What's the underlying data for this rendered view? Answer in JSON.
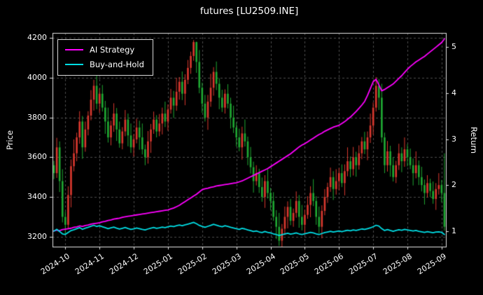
{
  "theme": {
    "background": "#000000",
    "frame": "#e6e6e6",
    "grid": "#4d4d4d",
    "text": "#ffffff"
  },
  "chart_data": {
    "type": "candlestick",
    "title": "futures [LU2509.INE]",
    "ylabel_left": "Price",
    "ylabel_right": "Return",
    "legend_position": "upper left",
    "grid": "dashed",
    "up_color": "#d9382e",
    "down_color": "#1fa832",
    "price_ticks": [
      3200,
      3400,
      3600,
      3800,
      4000,
      4200
    ],
    "price_range": [
      3150,
      4226
    ],
    "return_ticks": [
      1,
      2,
      3,
      4,
      5
    ],
    "return_range": [
      0.66,
      5.31
    ],
    "x_tick_labels": [
      "2024-10",
      "2024-11",
      "2024-12",
      "2025-01",
      "2025-02",
      "2025-03",
      "2025-04",
      "2025-05",
      "2025-06",
      "2025-07",
      "2025-08",
      "2025-09"
    ],
    "x_tick_indices": [
      4,
      16,
      28,
      40,
      52,
      64,
      76,
      88,
      100,
      112,
      124,
      136
    ],
    "candles": [
      [
        3560,
        3582,
        3490,
        3520
      ],
      [
        3520,
        3698,
        3496,
        3650
      ],
      [
        3650,
        3680,
        3425,
        3480
      ],
      [
        3480,
        3540,
        3272,
        3300
      ],
      [
        3300,
        3326,
        3214,
        3260
      ],
      [
        3260,
        3454,
        3240,
        3410
      ],
      [
        3410,
        3589,
        3348,
        3555
      ],
      [
        3555,
        3690,
        3529,
        3620
      ],
      [
        3620,
        3724,
        3580,
        3700
      ],
      [
        3700,
        3832,
        3668,
        3780
      ],
      [
        3780,
        3808,
        3592,
        3650
      ],
      [
        3650,
        3780,
        3628,
        3740
      ],
      [
        3740,
        3832,
        3710,
        3810
      ],
      [
        3810,
        3938,
        3786,
        3890
      ],
      [
        3890,
        3990,
        3835,
        3960
      ],
      [
        3960,
        4020,
        3842,
        3870
      ],
      [
        3870,
        3946,
        3824,
        3920
      ],
      [
        3920,
        3964,
        3830,
        3850
      ],
      [
        3850,
        3884,
        3718,
        3780
      ],
      [
        3780,
        3850,
        3674,
        3700
      ],
      [
        3700,
        3784,
        3660,
        3760
      ],
      [
        3760,
        3872,
        3728,
        3820
      ],
      [
        3820,
        3848,
        3682,
        3740
      ],
      [
        3740,
        3780,
        3648,
        3670
      ],
      [
        3670,
        3752,
        3640,
        3730
      ],
      [
        3730,
        3838,
        3706,
        3790
      ],
      [
        3790,
        3820,
        3655,
        3710
      ],
      [
        3710,
        3770,
        3622,
        3650
      ],
      [
        3650,
        3716,
        3604,
        3690
      ],
      [
        3690,
        3794,
        3670,
        3750
      ],
      [
        3750,
        3784,
        3638,
        3700
      ],
      [
        3700,
        3770,
        3614,
        3640
      ],
      [
        3640,
        3664,
        3560,
        3600
      ],
      [
        3600,
        3732,
        3568,
        3680
      ],
      [
        3680,
        3768,
        3622,
        3740
      ],
      [
        3740,
        3830,
        3718,
        3790
      ],
      [
        3790,
        3812,
        3700,
        3730
      ],
      [
        3730,
        3818,
        3706,
        3770
      ],
      [
        3770,
        3850,
        3715,
        3820
      ],
      [
        3820,
        3880,
        3752,
        3780
      ],
      [
        3780,
        3866,
        3734,
        3840
      ],
      [
        3840,
        3944,
        3820,
        3900
      ],
      [
        3900,
        3934,
        3798,
        3860
      ],
      [
        3860,
        4000,
        3834,
        3930
      ],
      [
        3930,
        4004,
        3890,
        3980
      ],
      [
        3980,
        4032,
        3888,
        3920
      ],
      [
        3920,
        4018,
        3862,
        3990
      ],
      [
        3990,
        4090,
        3968,
        4050
      ],
      [
        4050,
        4132,
        4020,
        4110
      ],
      [
        4110,
        4190,
        4086,
        4180
      ],
      [
        4180,
        4182,
        4025,
        4080
      ],
      [
        4080,
        4140,
        3922,
        3950
      ],
      [
        3950,
        3976,
        3824,
        3870
      ],
      [
        3870,
        3914,
        3780,
        3800
      ],
      [
        3800,
        3914,
        3738,
        3880
      ],
      [
        3880,
        4020,
        3854,
        3950
      ],
      [
        3950,
        4054,
        3910,
        4030
      ],
      [
        4030,
        4082,
        3938,
        3970
      ],
      [
        3970,
        3998,
        3842,
        3900
      ],
      [
        3900,
        3940,
        3828,
        3850
      ],
      [
        3850,
        3942,
        3820,
        3920
      ],
      [
        3920,
        3968,
        3846,
        3870
      ],
      [
        3870,
        3900,
        3745,
        3800
      ],
      [
        3800,
        3860,
        3722,
        3750
      ],
      [
        3750,
        3776,
        3654,
        3700
      ],
      [
        3700,
        3744,
        3630,
        3650
      ],
      [
        3650,
        3754,
        3588,
        3720
      ],
      [
        3720,
        3790,
        3654,
        3680
      ],
      [
        3680,
        3704,
        3560,
        3600
      ],
      [
        3600,
        3652,
        3518,
        3550
      ],
      [
        3550,
        3578,
        3422,
        3480
      ],
      [
        3480,
        3560,
        3458,
        3520
      ],
      [
        3520,
        3542,
        3420,
        3450
      ],
      [
        3450,
        3498,
        3376,
        3400
      ],
      [
        3400,
        3510,
        3345,
        3480
      ],
      [
        3480,
        3540,
        3392,
        3420
      ],
      [
        3420,
        3446,
        3334,
        3380
      ],
      [
        3380,
        3424,
        3280,
        3300
      ],
      [
        3300,
        3334,
        3188,
        3250
      ],
      [
        3250,
        3320,
        3154,
        3180
      ],
      [
        3180,
        3264,
        3140,
        3240
      ],
      [
        3240,
        3352,
        3208,
        3300
      ],
      [
        3300,
        3378,
        3242,
        3350
      ],
      [
        3350,
        3390,
        3258,
        3280
      ],
      [
        3280,
        3342,
        3250,
        3320
      ],
      [
        3320,
        3428,
        3296,
        3380
      ],
      [
        3380,
        3410,
        3245,
        3300
      ],
      [
        3300,
        3360,
        3232,
        3260
      ],
      [
        3260,
        3336,
        3214,
        3310
      ],
      [
        3310,
        3404,
        3290,
        3360
      ],
      [
        3360,
        3454,
        3298,
        3420
      ],
      [
        3420,
        3490,
        3354,
        3380
      ],
      [
        3380,
        3404,
        3260,
        3300
      ],
      [
        3300,
        3352,
        3218,
        3250
      ],
      [
        3250,
        3358,
        3192,
        3330
      ],
      [
        3330,
        3440,
        3308,
        3400
      ],
      [
        3400,
        3472,
        3370,
        3450
      ],
      [
        3450,
        3548,
        3426,
        3500
      ],
      [
        3500,
        3530,
        3385,
        3440
      ],
      [
        3440,
        3540,
        3412,
        3480
      ],
      [
        3480,
        3546,
        3434,
        3520
      ],
      [
        3520,
        3564,
        3450,
        3470
      ],
      [
        3470,
        3564,
        3408,
        3530
      ],
      [
        3530,
        3650,
        3504,
        3580
      ],
      [
        3580,
        3604,
        3500,
        3540
      ],
      [
        3540,
        3652,
        3508,
        3600
      ],
      [
        3600,
        3628,
        3502,
        3560
      ],
      [
        3560,
        3660,
        3538,
        3620
      ],
      [
        3620,
        3702,
        3590,
        3680
      ],
      [
        3680,
        3728,
        3616,
        3640
      ],
      [
        3640,
        3730,
        3585,
        3700
      ],
      [
        3700,
        3820,
        3672,
        3760
      ],
      [
        3760,
        3876,
        3714,
        3850
      ],
      [
        3850,
        4004,
        3830,
        3960
      ],
      [
        3960,
        3994,
        3838,
        3900
      ],
      [
        3900,
        3970,
        3674,
        3700
      ],
      [
        3700,
        3724,
        3520,
        3560
      ],
      [
        3560,
        3682,
        3528,
        3630
      ],
      [
        3630,
        3658,
        3502,
        3560
      ],
      [
        3560,
        3600,
        3478,
        3500
      ],
      [
        3500,
        3582,
        3470,
        3560
      ],
      [
        3560,
        3668,
        3536,
        3620
      ],
      [
        3620,
        3650,
        3525,
        3580
      ],
      [
        3580,
        3700,
        3552,
        3640
      ],
      [
        3640,
        3666,
        3554,
        3600
      ],
      [
        3600,
        3644,
        3540,
        3560
      ],
      [
        3560,
        3594,
        3458,
        3520
      ],
      [
        3520,
        3630,
        3494,
        3560
      ],
      [
        3560,
        3584,
        3460,
        3500
      ],
      [
        3500,
        3552,
        3428,
        3460
      ],
      [
        3460,
        3488,
        3362,
        3420
      ],
      [
        3420,
        3510,
        3398,
        3470
      ],
      [
        3470,
        3492,
        3400,
        3430
      ],
      [
        3430,
        3478,
        3366,
        3390
      ],
      [
        3390,
        3470,
        3335,
        3440
      ],
      [
        3440,
        3520,
        3412,
        3460
      ],
      [
        3460,
        3486,
        3374,
        3420
      ],
      [
        3420,
        3620,
        3230,
        3250
      ]
    ],
    "series": [
      {
        "name": "AI Strategy",
        "color": "#ff00ff",
        "axis": "return",
        "values": [
          1.0,
          1.02,
          1.01,
          1.03,
          1.04,
          1.05,
          1.06,
          1.08,
          1.09,
          1.11,
          1.1,
          1.12,
          1.13,
          1.15,
          1.16,
          1.17,
          1.18,
          1.2,
          1.21,
          1.23,
          1.24,
          1.26,
          1.27,
          1.28,
          1.3,
          1.31,
          1.32,
          1.33,
          1.34,
          1.35,
          1.36,
          1.37,
          1.38,
          1.39,
          1.4,
          1.41,
          1.42,
          1.43,
          1.44,
          1.45,
          1.46,
          1.48,
          1.5,
          1.53,
          1.56,
          1.6,
          1.64,
          1.68,
          1.72,
          1.76,
          1.8,
          1.85,
          1.9,
          1.92,
          1.93,
          1.95,
          1.96,
          1.98,
          1.99,
          2.0,
          2.01,
          2.02,
          2.03,
          2.04,
          2.05,
          2.07,
          2.09,
          2.12,
          2.15,
          2.18,
          2.21,
          2.24,
          2.27,
          2.3,
          2.33,
          2.36,
          2.4,
          2.44,
          2.48,
          2.52,
          2.56,
          2.6,
          2.64,
          2.68,
          2.73,
          2.78,
          2.83,
          2.87,
          2.9,
          2.94,
          2.98,
          3.02,
          3.06,
          3.1,
          3.13,
          3.17,
          3.2,
          3.23,
          3.26,
          3.28,
          3.3,
          3.34,
          3.38,
          3.43,
          3.48,
          3.54,
          3.6,
          3.67,
          3.74,
          3.82,
          3.95,
          4.1,
          4.25,
          4.3,
          4.18,
          4.05,
          4.08,
          4.12,
          4.16,
          4.2,
          4.26,
          4.32,
          4.38,
          4.45,
          4.52,
          4.58,
          4.63,
          4.68,
          4.72,
          4.76,
          4.8,
          4.85,
          4.9,
          4.95,
          5.0,
          5.05,
          5.1,
          5.18
        ]
      },
      {
        "name": "Buy-and-Hold",
        "color": "#00dde4",
        "axis": "return",
        "values": [
          1.0,
          1.037,
          0.989,
          0.938,
          0.926,
          0.969,
          1.01,
          1.028,
          1.051,
          1.074,
          1.037,
          1.063,
          1.082,
          1.105,
          1.125,
          1.099,
          1.114,
          1.094,
          1.074,
          1.051,
          1.068,
          1.085,
          1.063,
          1.043,
          1.06,
          1.077,
          1.054,
          1.037,
          1.048,
          1.065,
          1.051,
          1.034,
          1.023,
          1.045,
          1.063,
          1.077,
          1.06,
          1.071,
          1.085,
          1.074,
          1.091,
          1.108,
          1.097,
          1.116,
          1.131,
          1.114,
          1.134,
          1.151,
          1.168,
          1.188,
          1.159,
          1.122,
          1.099,
          1.08,
          1.102,
          1.122,
          1.145,
          1.128,
          1.108,
          1.094,
          1.114,
          1.099,
          1.08,
          1.065,
          1.051,
          1.037,
          1.057,
          1.045,
          1.023,
          1.009,
          0.989,
          1.0,
          0.98,
          0.966,
          0.989,
          0.972,
          0.96,
          0.938,
          0.923,
          0.903,
          0.92,
          0.938,
          0.952,
          0.932,
          0.943,
          0.96,
          0.938,
          0.926,
          0.94,
          0.954,
          0.972,
          0.96,
          0.938,
          0.923,
          0.946,
          0.966,
          0.98,
          0.994,
          0.977,
          0.989,
          1.0,
          0.986,
          1.003,
          1.017,
          1.006,
          1.023,
          1.011,
          1.028,
          1.045,
          1.034,
          1.051,
          1.068,
          1.094,
          1.125,
          1.108,
          1.051,
          1.011,
          1.031,
          1.011,
          0.994,
          1.011,
          1.028,
          1.017,
          1.034,
          1.023,
          1.011,
          1.0,
          1.011,
          0.994,
          0.983,
          0.972,
          0.986,
          0.975,
          0.963,
          0.977,
          0.983,
          0.972,
          0.923
        ]
      }
    ]
  }
}
